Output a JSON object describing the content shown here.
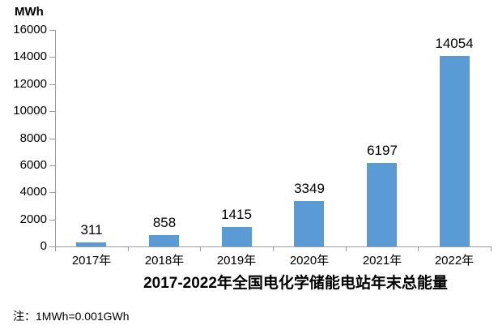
{
  "chart_data": {
    "type": "bar",
    "categories": [
      "2017年",
      "2018年",
      "2019年",
      "2020年",
      "2021年",
      "2022年"
    ],
    "values": [
      311,
      858,
      1415,
      3349,
      6197,
      14054
    ],
    "data_labels": [
      "311",
      "858",
      "1415",
      "3349",
      "6197",
      "14054"
    ],
    "title": "2017-2022年全国电化学储能电站年末总能量",
    "xlabel": "",
    "ylabel": "MWh",
    "ylim": [
      0,
      16000
    ],
    "yticks": [
      0,
      2000,
      4000,
      6000,
      8000,
      10000,
      12000,
      14000,
      16000
    ],
    "grid": false,
    "legend": "none",
    "bar_color": "#5B9BD5",
    "axis_color": "#9B9B9B",
    "text_color": "#000000"
  },
  "note": "注：1MWh=0.001GWh"
}
